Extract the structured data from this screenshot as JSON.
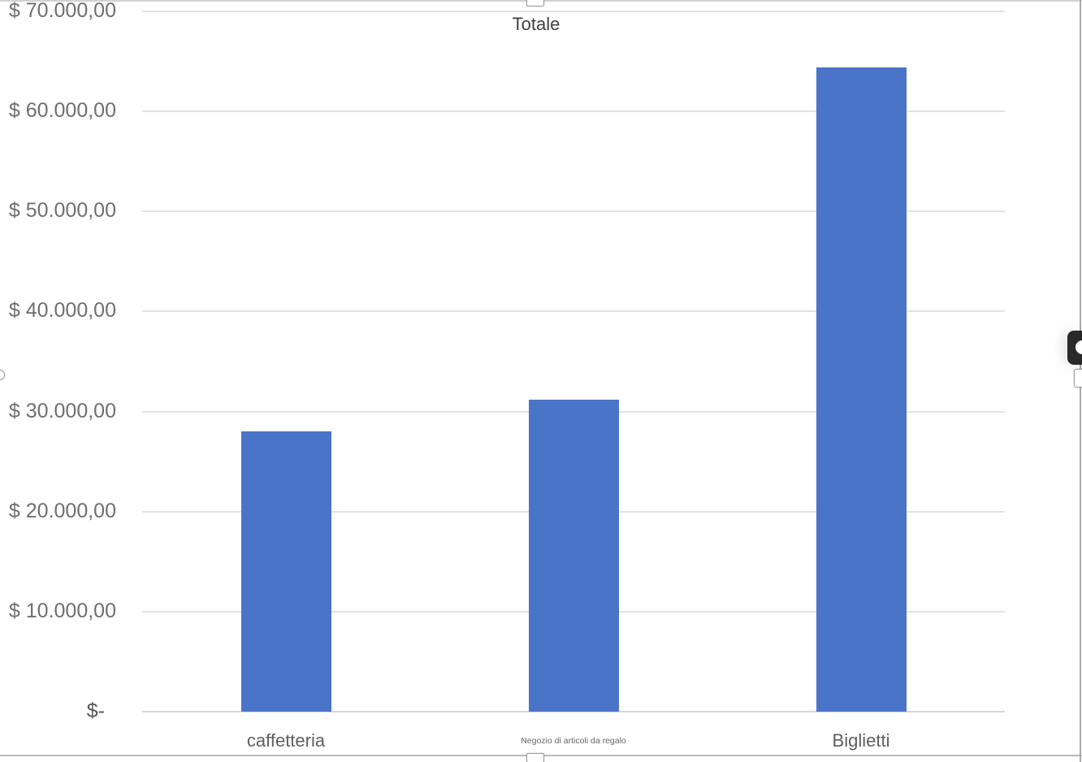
{
  "chart_data": {
    "type": "bar",
    "title": "Totale",
    "categories": [
      "caffetteria",
      "Negozio di articoli da regalo",
      "Biglietti"
    ],
    "values": [
      28000,
      31200,
      64400
    ],
    "xlabel": "",
    "ylabel": "",
    "ylim": [
      0,
      70000
    ],
    "ytick_step": 10000,
    "ytick_labels": [
      "$-",
      "$ 10.000,00",
      "$ 20.000,00",
      "$ 30.000,00",
      "$ 40.000,00",
      "$ 50.000,00",
      "$ 60.000,00",
      "$ 70.000,00"
    ],
    "grid": true,
    "legend_position": "none",
    "bar_color": "#4A74C8"
  },
  "colors": {
    "bar": "#4A74C8",
    "gridline": "#e3e3e3",
    "axis_line": "#d6d6d6",
    "title_text": "#3e3e3e",
    "tick_text": "#6f6f6f",
    "overlay_pill": "#292929"
  },
  "selection": {
    "handles": [
      "top",
      "bottom",
      "left",
      "right"
    ]
  },
  "overlay": {
    "icon": "circle"
  }
}
